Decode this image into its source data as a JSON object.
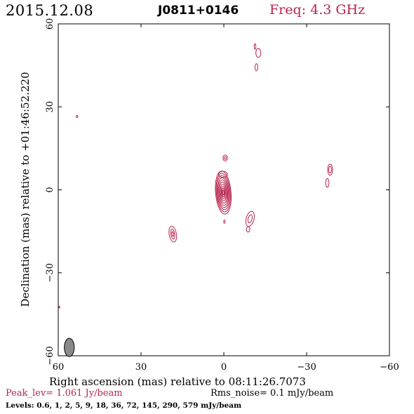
{
  "header": {
    "date": "2015.12.08",
    "source": "J0811+0146",
    "freq": "Freq: 4.3 GHz"
  },
  "colors": {
    "contour": "#b8234d",
    "axis": "#000000",
    "beam_fill": "#8a8a8a"
  },
  "footer": {
    "peak": "Peak_lev=  1.061 Jy/beam",
    "rms": "Rms_noise=  0.1 mJy/beam",
    "levels": "Levels: 0.6,    1,    2,    5,    9,   18,   36,   72,  145,  290,  579 mJy/beam"
  },
  "chart_data": {
    "type": "contour",
    "title": "J0811+0146",
    "xlabel": "Right ascension (mas) relative to 08:11:26.7073",
    "ylabel": "Declination (mas) relative to +01:46:52.220",
    "xlim": [
      60,
      -60
    ],
    "ylim": [
      -60,
      60
    ],
    "x_ticks": [
      60,
      30,
      0,
      -30,
      -60
    ],
    "y_ticks": [
      -60,
      -30,
      0,
      30,
      60
    ],
    "x_tick_labels": [
      "60",
      "30",
      "0",
      "−30",
      "−60"
    ],
    "y_tick_labels": [
      "−60",
      "−30",
      "0",
      "30",
      "60"
    ],
    "peak_jy_per_beam": 1.061,
    "rms_mjy_per_beam": 0.1,
    "levels_mjy_per_beam": [
      0.6,
      1,
      2,
      5,
      9,
      18,
      36,
      72,
      145,
      290,
      579
    ],
    "beam": {
      "x": 56,
      "y": -57,
      "major": 3.3,
      "minor": 1.8,
      "pa": 0
    },
    "components": [
      {
        "name": "core",
        "x": 0.2,
        "y": -1.0,
        "contours": [
          {
            "rx": 2.8,
            "ry": 7.8,
            "ang": -5
          },
          {
            "rx": 2.5,
            "ry": 7.0,
            "ang": -5
          },
          {
            "rx": 2.2,
            "ry": 6.2,
            "ang": -5
          },
          {
            "rx": 1.9,
            "ry": 5.4,
            "ang": -5
          },
          {
            "rx": 1.6,
            "ry": 4.6,
            "ang": -5
          },
          {
            "rx": 1.3,
            "ry": 3.8,
            "ang": -5
          },
          {
            "rx": 1.0,
            "ry": 3.0,
            "ang": -5
          },
          {
            "rx": 0.7,
            "ry": 2.2,
            "ang": -5
          },
          {
            "rx": 0.45,
            "ry": 1.5,
            "ang": -5
          },
          {
            "rx": 0.25,
            "ry": 0.8,
            "ang": -5
          }
        ]
      },
      {
        "name": "core-north-lobe",
        "x": 0.3,
        "y": 5.6,
        "contours": [
          {
            "rx": 1.6,
            "ry": 1.1,
            "ang": 0
          }
        ]
      },
      {
        "name": "knot-north",
        "x": -0.5,
        "y": 11.5,
        "contours": [
          {
            "rx": 0.8,
            "ry": 1.1,
            "ang": 0
          },
          {
            "rx": 0.35,
            "ry": 0.5,
            "ang": 0
          }
        ]
      },
      {
        "name": "knot-south-small",
        "x": -0.2,
        "y": -11.5,
        "contours": [
          {
            "rx": 0.25,
            "ry": 0.6,
            "ang": 0
          }
        ]
      },
      {
        "name": "knot-southwest",
        "x": -9.5,
        "y": -10.5,
        "contours": [
          {
            "rx": 1.4,
            "ry": 2.8,
            "ang": 15
          },
          {
            "rx": 0.7,
            "ry": 1.5,
            "ang": 15
          }
        ]
      },
      {
        "name": "knot-southwest-tail",
        "x": -8.8,
        "y": -14.3,
        "contours": [
          {
            "rx": 0.6,
            "ry": 1.0,
            "ang": 0
          }
        ]
      },
      {
        "name": "knot-southeast",
        "x": 18.5,
        "y": -16.0,
        "contours": [
          {
            "rx": 1.3,
            "ry": 2.9,
            "ang": -10
          },
          {
            "rx": 0.7,
            "ry": 1.8,
            "ang": -10
          },
          {
            "rx": 0.3,
            "ry": 0.9,
            "ang": -10
          }
        ]
      },
      {
        "name": "knot-west",
        "x": -38.5,
        "y": 7.3,
        "contours": [
          {
            "rx": 0.9,
            "ry": 2.0,
            "ang": 0
          },
          {
            "rx": 0.5,
            "ry": 1.2,
            "ang": 0
          }
        ]
      },
      {
        "name": "knot-west-lower",
        "x": -37.5,
        "y": 2.5,
        "contours": [
          {
            "rx": 0.6,
            "ry": 1.6,
            "ang": 0
          }
        ]
      },
      {
        "name": "knot-far-north",
        "x": -12.5,
        "y": 49.5,
        "contours": [
          {
            "rx": 0.9,
            "ry": 1.6,
            "ang": 0
          }
        ]
      },
      {
        "name": "knot-far-north-small",
        "x": -11.3,
        "y": 51.8,
        "contours": [
          {
            "rx": 0.3,
            "ry": 1.0,
            "ang": 0
          }
        ]
      },
      {
        "name": "knot-far-north-lower",
        "x": -11.8,
        "y": 44.3,
        "contours": [
          {
            "rx": 0.5,
            "ry": 1.3,
            "ang": 0
          }
        ]
      },
      {
        "name": "speck-east",
        "x": 53.2,
        "y": 26.5,
        "contours": [
          {
            "rx": 0.3,
            "ry": 0.4,
            "ang": 0
          }
        ]
      },
      {
        "name": "speck-edge",
        "x": 59.6,
        "y": -42.4,
        "contours": [
          {
            "rx": 0.2,
            "ry": 0.3,
            "ang": 0
          }
        ]
      }
    ]
  }
}
